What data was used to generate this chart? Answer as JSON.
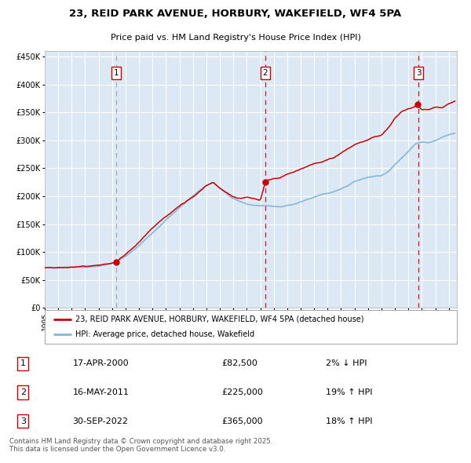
{
  "title": "23, REID PARK AVENUE, HORBURY, WAKEFIELD, WF4 5PA",
  "subtitle": "Price paid vs. HM Land Registry's House Price Index (HPI)",
  "background_color": "#dce9f5",
  "grid_color": "#ffffff",
  "ylim": [
    0,
    460000
  ],
  "yticks": [
    0,
    50000,
    100000,
    150000,
    200000,
    250000,
    300000,
    350000,
    400000,
    450000
  ],
  "x_start_year": 1995,
  "x_end_year": 2025,
  "sale_times": [
    2000.292,
    2011.375,
    2022.75
  ],
  "sale_prices": [
    82500,
    225000,
    365000
  ],
  "sale_labels": [
    "1",
    "2",
    "3"
  ],
  "sale_hpi_diff": [
    "2% ↓ HPI",
    "19% ↑ HPI",
    "18% ↑ HPI"
  ],
  "sale_date_strs": [
    "17-APR-2000",
    "16-MAY-2011",
    "30-SEP-2022"
  ],
  "legend_house": "23, REID PARK AVENUE, HORBURY, WAKEFIELD, WF4 5PA (detached house)",
  "legend_hpi": "HPI: Average price, detached house, Wakefield",
  "house_line_color": "#cc0000",
  "hpi_line_color": "#85b8d8",
  "vline1_color": "#999999",
  "vline23_color": "#cc0000",
  "footer": "Contains HM Land Registry data © Crown copyright and database right 2025.\nThis data is licensed under the Open Government Licence v3.0.",
  "hpi_knots": [
    1995.0,
    1996.0,
    1997.0,
    1998.0,
    1999.0,
    2000.0,
    2001.0,
    2002.0,
    2003.0,
    2004.0,
    2005.0,
    2006.0,
    2007.0,
    2007.5,
    2008.0,
    2008.5,
    2009.0,
    2009.5,
    2010.0,
    2010.5,
    2011.0,
    2011.5,
    2012.0,
    2012.5,
    2013.0,
    2013.5,
    2014.0,
    2014.5,
    2015.0,
    2015.5,
    2016.0,
    2016.5,
    2017.0,
    2017.5,
    2018.0,
    2018.5,
    2019.0,
    2019.5,
    2020.0,
    2020.5,
    2021.0,
    2021.5,
    2022.0,
    2022.5,
    2023.0,
    2023.5,
    2024.0,
    2024.5,
    2025.0,
    2025.5
  ],
  "hpi_vals": [
    72000,
    72500,
    73500,
    74500,
    76000,
    80000,
    93000,
    112000,
    135000,
    158000,
    178000,
    200000,
    220000,
    225000,
    215000,
    205000,
    197000,
    192000,
    188000,
    186000,
    185000,
    185000,
    184000,
    183000,
    185000,
    187000,
    191000,
    196000,
    200000,
    204000,
    207000,
    210000,
    215000,
    220000,
    228000,
    232000,
    235000,
    237000,
    238000,
    245000,
    258000,
    270000,
    282000,
    295000,
    300000,
    298000,
    302000,
    308000,
    312000,
    315000
  ],
  "house_knots": [
    1995.0,
    1996.0,
    1997.0,
    1998.0,
    1999.0,
    2000.0,
    2000.292,
    2001.0,
    2002.0,
    2003.0,
    2004.0,
    2005.0,
    2006.0,
    2007.0,
    2007.5,
    2008.0,
    2008.5,
    2009.0,
    2009.5,
    2010.0,
    2010.5,
    2011.0,
    2011.375,
    2011.5,
    2012.0,
    2012.5,
    2013.0,
    2013.5,
    2014.0,
    2014.5,
    2015.0,
    2015.5,
    2016.0,
    2016.5,
    2017.0,
    2017.5,
    2018.0,
    2018.5,
    2019.0,
    2019.5,
    2020.0,
    2020.5,
    2021.0,
    2021.5,
    2022.0,
    2022.5,
    2022.75,
    2023.0,
    2023.5,
    2024.0,
    2024.5,
    2025.0,
    2025.5
  ],
  "house_vals": [
    72000,
    72500,
    73500,
    74500,
    76000,
    80000,
    82500,
    94000,
    115000,
    140000,
    162000,
    182000,
    197000,
    218000,
    224000,
    213000,
    205000,
    198000,
    196000,
    198000,
    196000,
    192000,
    225000,
    228000,
    230000,
    232000,
    238000,
    242000,
    248000,
    252000,
    257000,
    260000,
    265000,
    270000,
    278000,
    285000,
    293000,
    298000,
    302000,
    307000,
    310000,
    325000,
    343000,
    355000,
    360000,
    364000,
    365000,
    358000,
    358000,
    362000,
    362000,
    370000,
    375000
  ]
}
